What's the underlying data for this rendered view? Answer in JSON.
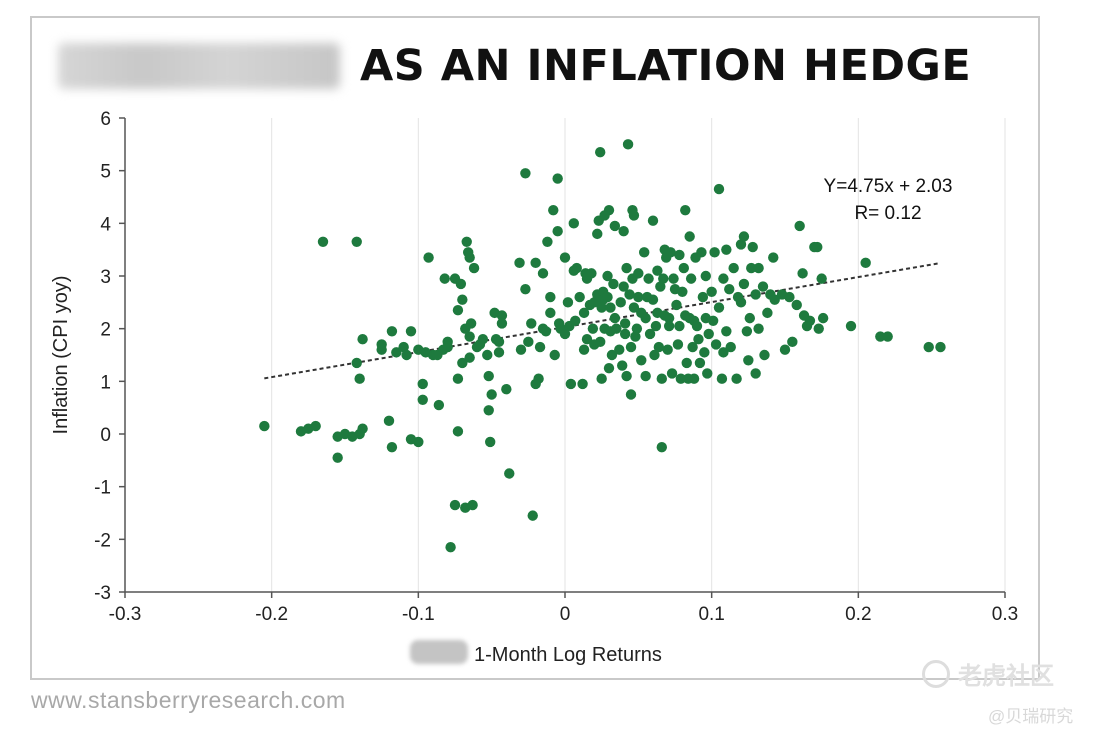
{
  "title": "AS AN INFLATION HEDGE",
  "source": "www.stansberryresearch.com",
  "watermark": {
    "main": "老虎社区",
    "sub": "@贝瑞研究"
  },
  "colors": {
    "points": "#1e7a3e",
    "trend": "#333333",
    "axis": "#555555"
  },
  "chart_data": {
    "type": "scatter",
    "title": "AS AN INFLATION HEDGE",
    "xlabel": "1-Month Log Returns",
    "ylabel": "Inflation (CPI yoy)",
    "xlim": [
      -0.3,
      0.3
    ],
    "ylim": [
      -3,
      6
    ],
    "x_ticks": [
      "-0.3",
      "-0.2",
      "-0.1",
      "0",
      "0.1",
      "0.2",
      "0.3"
    ],
    "y_ticks": [
      "-3",
      "-2",
      "-1",
      "0",
      "1",
      "2",
      "3",
      "4",
      "5",
      "6"
    ],
    "grid": {
      "x": true,
      "y": false
    },
    "trendline": {
      "slope": 4.75,
      "intercept": 2.03,
      "x_range": [
        -0.205,
        0.255
      ],
      "style": "dashed"
    },
    "annotations": [
      "Y=4.75x + 2.03",
      "R= 0.12"
    ],
    "points": [
      [
        -0.205,
        0.15
      ],
      [
        -0.18,
        0.05
      ],
      [
        -0.175,
        0.1
      ],
      [
        -0.17,
        0.15
      ],
      [
        -0.165,
        3.65
      ],
      [
        -0.155,
        -0.05
      ],
      [
        -0.155,
        -0.45
      ],
      [
        -0.15,
        0.0
      ],
      [
        -0.145,
        -0.05
      ],
      [
        -0.142,
        3.65
      ],
      [
        -0.142,
        1.35
      ],
      [
        -0.14,
        1.05
      ],
      [
        -0.14,
        0.0
      ],
      [
        -0.138,
        0.1
      ],
      [
        -0.138,
        1.8
      ],
      [
        -0.125,
        1.6
      ],
      [
        -0.125,
        1.7
      ],
      [
        -0.12,
        0.25
      ],
      [
        -0.118,
        -0.25
      ],
      [
        -0.118,
        1.95
      ],
      [
        -0.115,
        1.55
      ],
      [
        -0.11,
        1.65
      ],
      [
        -0.108,
        1.5
      ],
      [
        -0.105,
        1.95
      ],
      [
        -0.105,
        -0.1
      ],
      [
        -0.1,
        -0.15
      ],
      [
        -0.1,
        1.6
      ],
      [
        -0.097,
        0.95
      ],
      [
        -0.097,
        0.65
      ],
      [
        -0.095,
        1.55
      ],
      [
        -0.093,
        3.35
      ],
      [
        -0.09,
        1.5
      ],
      [
        -0.087,
        1.5
      ],
      [
        -0.086,
        0.55
      ],
      [
        -0.083,
        1.6
      ],
      [
        -0.082,
        2.95
      ],
      [
        -0.08,
        1.65
      ],
      [
        -0.08,
        1.75
      ],
      [
        -0.078,
        -2.15
      ],
      [
        -0.075,
        2.95
      ],
      [
        -0.075,
        -1.35
      ],
      [
        -0.073,
        1.05
      ],
      [
        -0.073,
        0.05
      ],
      [
        -0.073,
        2.35
      ],
      [
        -0.071,
        2.85
      ],
      [
        -0.07,
        2.55
      ],
      [
        -0.07,
        1.35
      ],
      [
        -0.068,
        2.0
      ],
      [
        -0.068,
        -1.4
      ],
      [
        -0.067,
        3.65
      ],
      [
        -0.066,
        3.45
      ],
      [
        -0.065,
        3.35
      ],
      [
        -0.065,
        1.85
      ],
      [
        -0.065,
        1.45
      ],
      [
        -0.064,
        2.1
      ],
      [
        -0.063,
        -1.35
      ],
      [
        -0.062,
        3.15
      ],
      [
        -0.06,
        1.65
      ],
      [
        -0.058,
        1.7
      ],
      [
        -0.056,
        1.8
      ],
      [
        -0.053,
        1.5
      ],
      [
        -0.052,
        1.1
      ],
      [
        -0.052,
        0.45
      ],
      [
        -0.051,
        -0.15
      ],
      [
        -0.05,
        0.75
      ],
      [
        -0.048,
        2.3
      ],
      [
        -0.047,
        1.8
      ],
      [
        -0.045,
        1.55
      ],
      [
        -0.045,
        1.75
      ],
      [
        -0.043,
        2.25
      ],
      [
        -0.043,
        2.1
      ],
      [
        -0.04,
        0.85
      ],
      [
        -0.038,
        -0.75
      ],
      [
        -0.031,
        3.25
      ],
      [
        -0.03,
        1.6
      ],
      [
        -0.027,
        4.95
      ],
      [
        -0.027,
        2.75
      ],
      [
        -0.025,
        1.75
      ],
      [
        -0.023,
        2.1
      ],
      [
        -0.022,
        -1.55
      ],
      [
        -0.02,
        3.25
      ],
      [
        -0.02,
        0.95
      ],
      [
        -0.018,
        1.05
      ],
      [
        -0.017,
        1.65
      ],
      [
        -0.015,
        3.05
      ],
      [
        -0.015,
        2.0
      ],
      [
        -0.013,
        1.95
      ],
      [
        -0.012,
        3.65
      ],
      [
        -0.01,
        2.6
      ],
      [
        -0.01,
        2.3
      ],
      [
        -0.008,
        4.25
      ],
      [
        -0.007,
        1.5
      ],
      [
        -0.005,
        4.85
      ],
      [
        -0.005,
        3.85
      ],
      [
        -0.004,
        2.1
      ],
      [
        -0.003,
        2.0
      ],
      [
        0.0,
        3.35
      ],
      [
        0.0,
        1.9
      ],
      [
        0.002,
        2.5
      ],
      [
        0.003,
        2.05
      ],
      [
        0.004,
        0.95
      ],
      [
        0.006,
        3.1
      ],
      [
        0.006,
        4.0
      ],
      [
        0.007,
        2.15
      ],
      [
        0.008,
        3.15
      ],
      [
        0.01,
        2.6
      ],
      [
        0.012,
        0.95
      ],
      [
        0.013,
        1.6
      ],
      [
        0.013,
        2.3
      ],
      [
        0.014,
        3.05
      ],
      [
        0.015,
        2.95
      ],
      [
        0.015,
        1.8
      ],
      [
        0.017,
        2.45
      ],
      [
        0.018,
        3.05
      ],
      [
        0.019,
        2.0
      ],
      [
        0.02,
        2.5
      ],
      [
        0.02,
        1.7
      ],
      [
        0.022,
        3.8
      ],
      [
        0.022,
        2.65
      ],
      [
        0.023,
        4.05
      ],
      [
        0.024,
        1.75
      ],
      [
        0.024,
        5.35
      ],
      [
        0.025,
        2.4
      ],
      [
        0.025,
        1.05
      ],
      [
        0.026,
        2.7
      ],
      [
        0.026,
        2.55
      ],
      [
        0.027,
        4.15
      ],
      [
        0.027,
        2.0
      ],
      [
        0.029,
        3.0
      ],
      [
        0.029,
        2.6
      ],
      [
        0.03,
        1.25
      ],
      [
        0.03,
        4.25
      ],
      [
        0.031,
        2.4
      ],
      [
        0.031,
        1.95
      ],
      [
        0.032,
        1.5
      ],
      [
        0.033,
        2.85
      ],
      [
        0.034,
        2.2
      ],
      [
        0.034,
        3.95
      ],
      [
        0.035,
        2.0
      ],
      [
        0.037,
        1.6
      ],
      [
        0.038,
        2.5
      ],
      [
        0.039,
        1.3
      ],
      [
        0.04,
        2.8
      ],
      [
        0.04,
        3.85
      ],
      [
        0.041,
        1.9
      ],
      [
        0.041,
        2.1
      ],
      [
        0.042,
        3.15
      ],
      [
        0.042,
        1.1
      ],
      [
        0.043,
        5.5
      ],
      [
        0.044,
        2.65
      ],
      [
        0.045,
        1.65
      ],
      [
        0.045,
        0.75
      ],
      [
        0.046,
        2.95
      ],
      [
        0.046,
        4.25
      ],
      [
        0.047,
        2.4
      ],
      [
        0.047,
        4.15
      ],
      [
        0.048,
        1.85
      ],
      [
        0.049,
        2.0
      ],
      [
        0.05,
        3.05
      ],
      [
        0.05,
        2.6
      ],
      [
        0.052,
        2.3
      ],
      [
        0.052,
        1.4
      ],
      [
        0.054,
        3.45
      ],
      [
        0.055,
        2.2
      ],
      [
        0.055,
        1.1
      ],
      [
        0.056,
        2.6
      ],
      [
        0.057,
        2.95
      ],
      [
        0.058,
        1.9
      ],
      [
        0.06,
        2.55
      ],
      [
        0.06,
        4.05
      ],
      [
        0.061,
        1.5
      ],
      [
        0.062,
        2.05
      ],
      [
        0.063,
        3.1
      ],
      [
        0.063,
        2.3
      ],
      [
        0.064,
        1.65
      ],
      [
        0.065,
        2.8
      ],
      [
        0.066,
        1.05
      ],
      [
        0.066,
        -0.25
      ],
      [
        0.067,
        2.95
      ],
      [
        0.068,
        3.5
      ],
      [
        0.068,
        2.25
      ],
      [
        0.069,
        3.35
      ],
      [
        0.07,
        1.6
      ],
      [
        0.071,
        2.2
      ],
      [
        0.071,
        2.05
      ],
      [
        0.072,
        3.45
      ],
      [
        0.073,
        1.15
      ],
      [
        0.074,
        2.95
      ],
      [
        0.075,
        2.75
      ],
      [
        0.076,
        2.45
      ],
      [
        0.077,
        1.7
      ],
      [
        0.078,
        3.4
      ],
      [
        0.078,
        2.05
      ],
      [
        0.079,
        1.05
      ],
      [
        0.08,
        2.7
      ],
      [
        0.081,
        3.15
      ],
      [
        0.082,
        4.25
      ],
      [
        0.082,
        2.25
      ],
      [
        0.083,
        1.35
      ],
      [
        0.084,
        1.05
      ],
      [
        0.085,
        3.75
      ],
      [
        0.085,
        2.2
      ],
      [
        0.086,
        2.95
      ],
      [
        0.087,
        1.65
      ],
      [
        0.088,
        1.05
      ],
      [
        0.088,
        2.15
      ],
      [
        0.089,
        3.35
      ],
      [
        0.09,
        2.05
      ],
      [
        0.091,
        1.8
      ],
      [
        0.092,
        1.35
      ],
      [
        0.093,
        3.45
      ],
      [
        0.094,
        2.6
      ],
      [
        0.095,
        1.55
      ],
      [
        0.096,
        2.2
      ],
      [
        0.096,
        3.0
      ],
      [
        0.097,
        1.15
      ],
      [
        0.098,
        1.9
      ],
      [
        0.1,
        2.7
      ],
      [
        0.101,
        2.15
      ],
      [
        0.102,
        3.45
      ],
      [
        0.103,
        1.7
      ],
      [
        0.105,
        2.4
      ],
      [
        0.105,
        4.65
      ],
      [
        0.107,
        1.05
      ],
      [
        0.108,
        1.55
      ],
      [
        0.108,
        2.95
      ],
      [
        0.11,
        3.5
      ],
      [
        0.11,
        1.95
      ],
      [
        0.112,
        2.75
      ],
      [
        0.113,
        1.65
      ],
      [
        0.115,
        3.15
      ],
      [
        0.117,
        1.05
      ],
      [
        0.118,
        2.6
      ],
      [
        0.12,
        3.6
      ],
      [
        0.12,
        2.5
      ],
      [
        0.122,
        3.75
      ],
      [
        0.122,
        2.85
      ],
      [
        0.124,
        1.95
      ],
      [
        0.125,
        1.4
      ],
      [
        0.126,
        2.2
      ],
      [
        0.127,
        3.15
      ],
      [
        0.128,
        3.55
      ],
      [
        0.13,
        2.65
      ],
      [
        0.13,
        1.15
      ],
      [
        0.132,
        2.0
      ],
      [
        0.132,
        3.15
      ],
      [
        0.135,
        2.8
      ],
      [
        0.136,
        1.5
      ],
      [
        0.138,
        2.3
      ],
      [
        0.14,
        2.65
      ],
      [
        0.142,
        3.35
      ],
      [
        0.143,
        2.55
      ],
      [
        0.148,
        2.65
      ],
      [
        0.15,
        1.6
      ],
      [
        0.153,
        2.6
      ],
      [
        0.155,
        1.75
      ],
      [
        0.158,
        2.45
      ],
      [
        0.16,
        3.95
      ],
      [
        0.162,
        3.05
      ],
      [
        0.163,
        2.25
      ],
      [
        0.165,
        2.05
      ],
      [
        0.167,
        2.15
      ],
      [
        0.17,
        3.55
      ],
      [
        0.172,
        3.55
      ],
      [
        0.173,
        2.0
      ],
      [
        0.175,
        2.95
      ],
      [
        0.176,
        2.2
      ],
      [
        0.195,
        2.05
      ],
      [
        0.205,
        3.25
      ],
      [
        0.215,
        1.85
      ],
      [
        0.22,
        1.85
      ],
      [
        0.248,
        1.65
      ],
      [
        0.256,
        1.65
      ]
    ]
  }
}
